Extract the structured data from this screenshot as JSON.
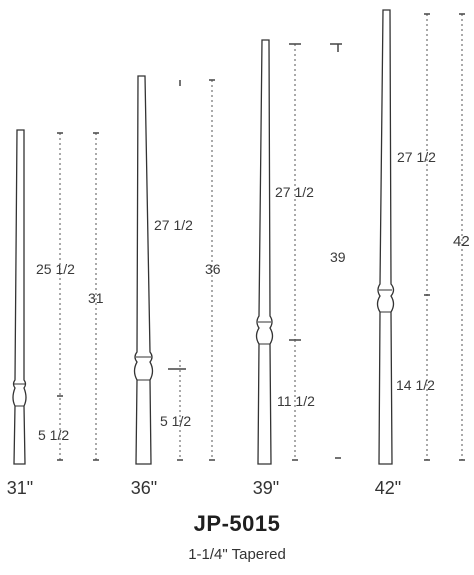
{
  "balusters": [
    {
      "height_label": "31\"",
      "dimensions": [
        {
          "label": "25 1/2"
        },
        {
          "label": "31"
        },
        {
          "label": "5 1/2"
        }
      ]
    },
    {
      "height_label": "36\"",
      "dimensions": [
        {
          "label": "27 1/2"
        },
        {
          "label": "36"
        },
        {
          "label": "5 1/2"
        }
      ]
    },
    {
      "height_label": "39\"",
      "dimensions": [
        {
          "label": "27 1/2"
        },
        {
          "label": "39"
        },
        {
          "label": "11 1/2"
        }
      ]
    },
    {
      "height_label": "42\"",
      "dimensions": [
        {
          "label": "27 1/2"
        },
        {
          "label": "42"
        },
        {
          "label": "14 1/2"
        }
      ]
    }
  ],
  "model": {
    "name": "JP-5015",
    "description": "1-1/4\" Tapered"
  },
  "colors": {
    "line": "#555555",
    "baluster_outline": "#333333"
  }
}
